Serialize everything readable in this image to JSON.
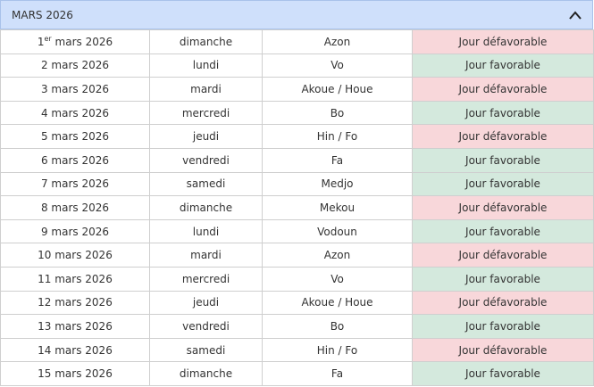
{
  "header": {
    "title": "MARS 2026"
  },
  "table": {
    "rows": [
      {
        "date": {
          "day": "1",
          "sup": "er",
          "rest": "mars 2026"
        },
        "weekday": "dimanche",
        "name": "Azon",
        "status": "Jour défavorable",
        "color": "#f8d7da"
      },
      {
        "date": "2 mars 2026",
        "weekday": "lundi",
        "name": "Vo",
        "status": "Jour favorable",
        "color": "#d4e9dd"
      },
      {
        "date": "3 mars 2026",
        "weekday": "mardi",
        "name": "Akoue / Houe",
        "status": "Jour défavorable",
        "color": "#f8d7da"
      },
      {
        "date": "4 mars 2026",
        "weekday": "mercredi",
        "name": "Bo",
        "status": "Jour favorable",
        "color": "#d4e9dd"
      },
      {
        "date": "5 mars 2026",
        "weekday": "jeudi",
        "name": "Hin / Fo",
        "status": "Jour défavorable",
        "color": "#f8d7da"
      },
      {
        "date": "6 mars 2026",
        "weekday": "vendredi",
        "name": "Fa",
        "status": "Jour favorable",
        "color": "#d4e9dd"
      },
      {
        "date": "7 mars 2026",
        "weekday": "samedi",
        "name": "Medjo",
        "status": "Jour favorable",
        "color": "#d4e9dd"
      },
      {
        "date": "8 mars 2026",
        "weekday": "dimanche",
        "name": "Mekou",
        "status": "Jour défavorable",
        "color": "#f8d7da"
      },
      {
        "date": "9 mars 2026",
        "weekday": "lundi",
        "name": "Vodoun",
        "status": "Jour favorable",
        "color": "#d4e9dd"
      },
      {
        "date": "10 mars 2026",
        "weekday": "mardi",
        "name": "Azon",
        "status": "Jour défavorable",
        "color": "#f8d7da"
      },
      {
        "date": "11 mars 2026",
        "weekday": "mercredi",
        "name": "Vo",
        "status": "Jour favorable",
        "color": "#d4e9dd"
      },
      {
        "date": "12 mars 2026",
        "weekday": "jeudi",
        "name": "Akoue / Houe",
        "status": "Jour défavorable",
        "color": "#f8d7da"
      },
      {
        "date": "13 mars 2026",
        "weekday": "vendredi",
        "name": "Bo",
        "status": "Jour favorable",
        "color": "#d4e9dd"
      },
      {
        "date": "14 mars 2026",
        "weekday": "samedi",
        "name": "Hin / Fo",
        "status": "Jour défavorable",
        "color": "#f8d7da"
      },
      {
        "date": "15 mars 2026",
        "weekday": "dimanche",
        "name": "Fa",
        "status": "Jour favorable",
        "color": "#d4e9dd"
      }
    ]
  }
}
